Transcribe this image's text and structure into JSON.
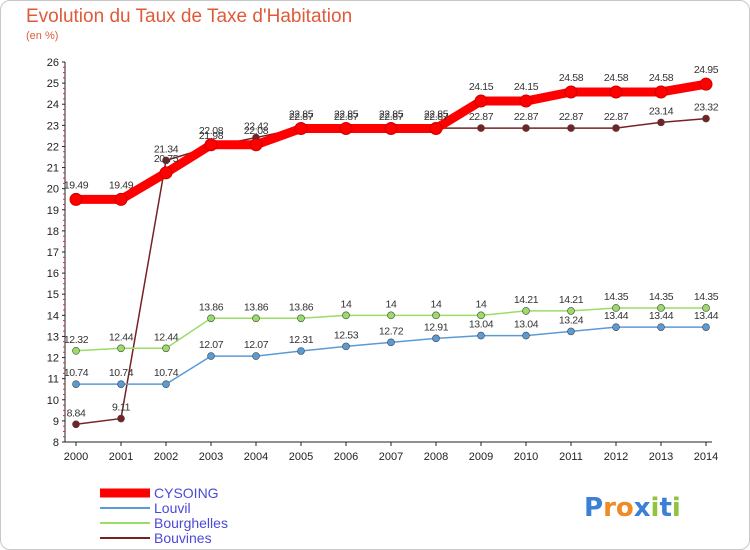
{
  "header": {
    "title": "Evolution du Taux de Taxe d'Habitation",
    "subtitle": "(en %)"
  },
  "brand": {
    "logo_text": "Proxiti"
  },
  "chart_data": {
    "type": "line",
    "title": "Evolution du Taux de Taxe d'Habitation",
    "ylabel": "(en %)",
    "xlabel": "",
    "ylim": [
      8,
      26
    ],
    "yticks": [
      "8",
      "9",
      "10",
      "11",
      "12",
      "13",
      "14",
      "15",
      "16",
      "17",
      "18",
      "19",
      "20",
      "21",
      "22",
      "23",
      "24",
      "25",
      "26"
    ],
    "x": [
      "2000",
      "2001",
      "2002",
      "2003",
      "2004",
      "2005",
      "2006",
      "2007",
      "2008",
      "2009",
      "2010",
      "2011",
      "2012",
      "2013",
      "2014"
    ],
    "grid": false,
    "legend_position": "bottom-left",
    "series": [
      {
        "name": "CYSOING",
        "color": "#ff0000",
        "values": [
          19.49,
          19.49,
          20.75,
          22.08,
          22.08,
          22.85,
          22.85,
          22.85,
          22.85,
          24.15,
          24.15,
          24.58,
          24.58,
          24.58,
          24.95
        ],
        "labels": [
          "19.49",
          "19.49",
          "20.75",
          "22.08",
          "22.08",
          "22.85",
          "22.85",
          "22.85",
          "22.85",
          "24.15",
          "24.15",
          "24.58",
          "24.58",
          "24.58",
          "24.95"
        ]
      },
      {
        "name": "Louvil",
        "color": "#5b9bd5",
        "values": [
          10.74,
          10.74,
          10.74,
          12.07,
          12.07,
          12.31,
          12.53,
          12.72,
          12.91,
          13.04,
          13.04,
          13.24,
          13.44,
          13.44,
          13.44
        ],
        "labels": [
          "10.74",
          "10.74",
          "10.74",
          "12.07",
          "12.07",
          "12.31",
          "12.53",
          "12.72",
          "12.91",
          "13.04",
          "13.04",
          "13.24",
          "13.44",
          "13.44",
          "13.44"
        ]
      },
      {
        "name": "Bourghelles",
        "color": "#99dd66",
        "values": [
          12.32,
          12.44,
          12.44,
          13.86,
          13.86,
          13.86,
          14,
          14,
          14,
          14,
          14.21,
          14.21,
          14.35,
          14.35,
          14.35
        ],
        "labels": [
          "12.32",
          "12.44",
          "12.44",
          "13.86",
          "13.86",
          "13.86",
          "14",
          "14",
          "14",
          "14",
          "14.21",
          "14.21",
          "14.35",
          "14.35",
          "14.35"
        ]
      },
      {
        "name": "Bouvines",
        "color": "#772222",
        "values": [
          8.84,
          9.11,
          21.34,
          21.98,
          22.42,
          22.87,
          22.87,
          22.87,
          22.87,
          22.87,
          22.87,
          22.87,
          22.87,
          23.14,
          23.32
        ],
        "labels": [
          "8.84",
          "9.11",
          "21.34",
          "21.98",
          "22.42",
          "22.87",
          "22.87",
          "22.87",
          "22.87",
          "22.87",
          "22.87",
          "22.87",
          "22.87",
          "23.14",
          "23.32"
        ]
      }
    ]
  }
}
